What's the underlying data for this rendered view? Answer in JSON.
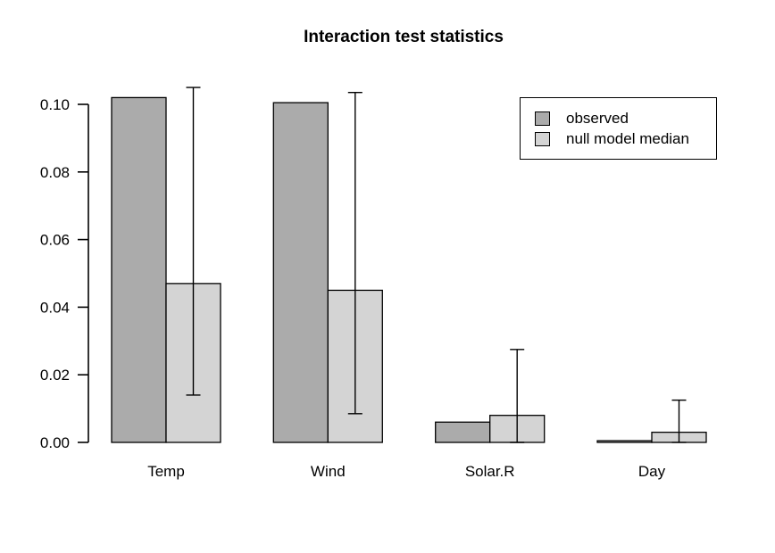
{
  "chart_data": {
    "type": "bar",
    "title": "Interaction test statistics",
    "xlabel": "",
    "ylabel": "",
    "categories": [
      "Temp",
      "Wind",
      "Solar.R",
      "Day"
    ],
    "series": [
      {
        "name": "observed",
        "color": "#ababab",
        "values": [
          0.102,
          0.1005,
          0.006,
          0.0005
        ]
      },
      {
        "name": "null model median",
        "color": "#d4d4d4",
        "values": [
          0.047,
          0.045,
          0.008,
          0.003
        ]
      }
    ],
    "error_bars": {
      "on_series": "null model median",
      "lower": [
        0.014,
        0.0085,
        0.0,
        0.0
      ],
      "upper": [
        0.105,
        0.1035,
        0.0275,
        0.0125
      ]
    },
    "ylim": [
      0,
      0.1
    ],
    "yticks": [
      0.0,
      0.02,
      0.04,
      0.06,
      0.08,
      0.1
    ],
    "ytick_format_decimals": 2,
    "grid": false,
    "legend_position": "top-right",
    "colors": {
      "axis": "#000000",
      "bar_border": "#000000",
      "error_bar": "#000000",
      "background": "#ffffff",
      "text": "#000000"
    }
  }
}
